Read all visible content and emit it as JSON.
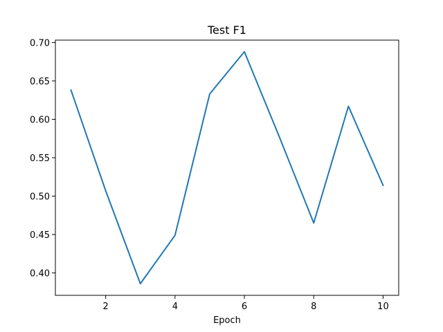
{
  "chart_data": {
    "type": "line",
    "title": "Test F1",
    "xlabel": "Epoch",
    "ylabel": "",
    "xlim": [
      0.55,
      10.45
    ],
    "ylim": [
      0.3708,
      0.7031
    ],
    "xticks": [
      2,
      4,
      6,
      8,
      10
    ],
    "yticks": [
      0.4,
      0.45,
      0.5,
      0.55,
      0.6,
      0.65,
      0.7
    ],
    "ytick_labels": [
      "0.40",
      "0.45",
      "0.50",
      "0.55",
      "0.60",
      "0.65",
      "0.70"
    ],
    "grid": false,
    "series": [
      {
        "name": "Test F1",
        "color": "#1f77b4",
        "x": [
          1,
          2,
          3,
          4,
          5,
          6,
          7,
          8,
          9,
          10
        ],
        "values": [
          0.638,
          0.507,
          0.386,
          0.449,
          0.633,
          0.688,
          0.578,
          0.465,
          0.617,
          0.514
        ]
      }
    ]
  }
}
